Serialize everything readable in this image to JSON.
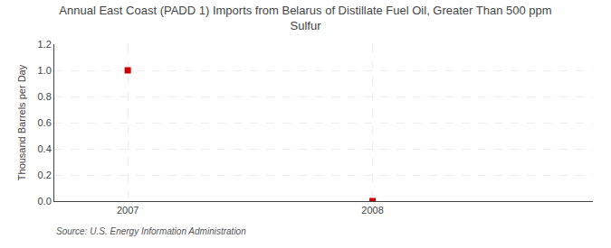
{
  "chart_data": {
    "type": "scatter",
    "title": "Annual East Coast (PADD 1) Imports from Belarus of Distillate Fuel Oil, Greater Than 500 ppm\nSulfur",
    "y_label": "Thousand Barrels per Day",
    "annotations": [
      "Source: U.S. Energy Information Administration"
    ],
    "x": [
      2007,
      2008
    ],
    "values": [
      1.0,
      0.0
    ],
    "color": "#cc0000",
    "marker": "square",
    "xlim": [
      2006.7,
      2008.9
    ],
    "xticks": [
      2007,
      2008
    ],
    "ylim": [
      0.0,
      1.2
    ],
    "yticks": [
      {
        "value": 0.0,
        "label": "0.0"
      },
      {
        "value": 0.2,
        "label": "0.2"
      },
      {
        "value": 0.4,
        "label": "0.4"
      },
      {
        "value": 0.6,
        "label": "0.6"
      },
      {
        "value": 0.8,
        "label": "0.8"
      },
      {
        "value": 1.0,
        "label": "1.0"
      },
      {
        "value": 1.2,
        "label": "1.2"
      }
    ],
    "grid": true
  }
}
